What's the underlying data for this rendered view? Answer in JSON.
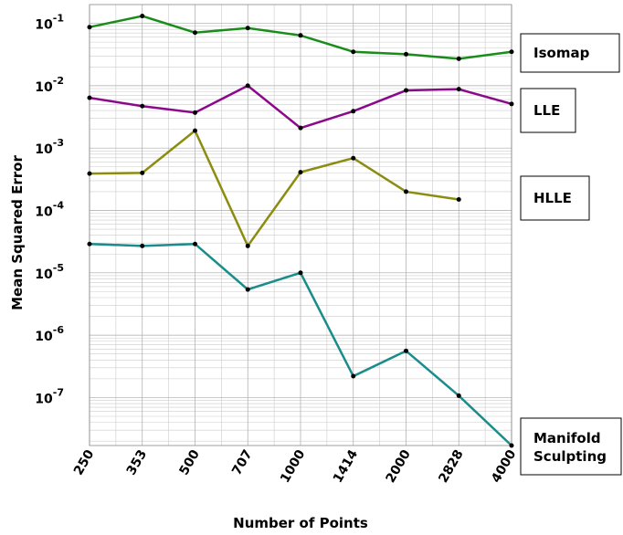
{
  "chart_data": {
    "type": "line",
    "log_scale_y": true,
    "grid": true,
    "xlabel": "Number of Points",
    "ylabel": "Mean Squared Error",
    "categories": [
      "250",
      "353",
      "500",
      "707",
      "1000",
      "1414",
      "2000",
      "2828",
      "4000"
    ],
    "ylim": [
      1.7e-08,
      0.2
    ],
    "yticks": [
      {
        "value": 0.1,
        "label": "10",
        "exponent": "-1"
      },
      {
        "value": 0.01,
        "label": "10",
        "exponent": "-2"
      },
      {
        "value": 0.001,
        "label": "10",
        "exponent": "-3"
      },
      {
        "value": 0.0001,
        "label": "10",
        "exponent": "-4"
      },
      {
        "value": 1e-05,
        "label": "10",
        "exponent": "-5"
      },
      {
        "value": 1e-06,
        "label": "10",
        "exponent": "-6"
      },
      {
        "value": 1e-07,
        "label": "10",
        "exponent": "-7"
      }
    ],
    "series": [
      {
        "name": "Isomap",
        "color": "#1a8c1a",
        "values": [
          0.087,
          0.131,
          0.071,
          0.084,
          0.064,
          0.035,
          0.032,
          0.027,
          0.035
        ]
      },
      {
        "name": "LLE",
        "color": "#8a0a8a",
        "values": [
          0.0064,
          0.0047,
          0.0037,
          0.01,
          0.0021,
          0.0039,
          0.0084,
          0.0088,
          0.0051
        ]
      },
      {
        "name": "HLLE",
        "color": "#8c8c10",
        "values": [
          0.00039,
          0.0004,
          0.0019,
          2.7e-05,
          0.00041,
          0.00069,
          0.0002,
          0.00015,
          null
        ]
      },
      {
        "name": "Manifold Sculpting",
        "color": "#1a8c8c",
        "values": [
          2.9e-05,
          2.7e-05,
          2.9e-05,
          5.4e-06,
          1e-05,
          2.2e-07,
          5.6e-07,
          1.07e-07,
          1.7e-08
        ]
      }
    ]
  }
}
